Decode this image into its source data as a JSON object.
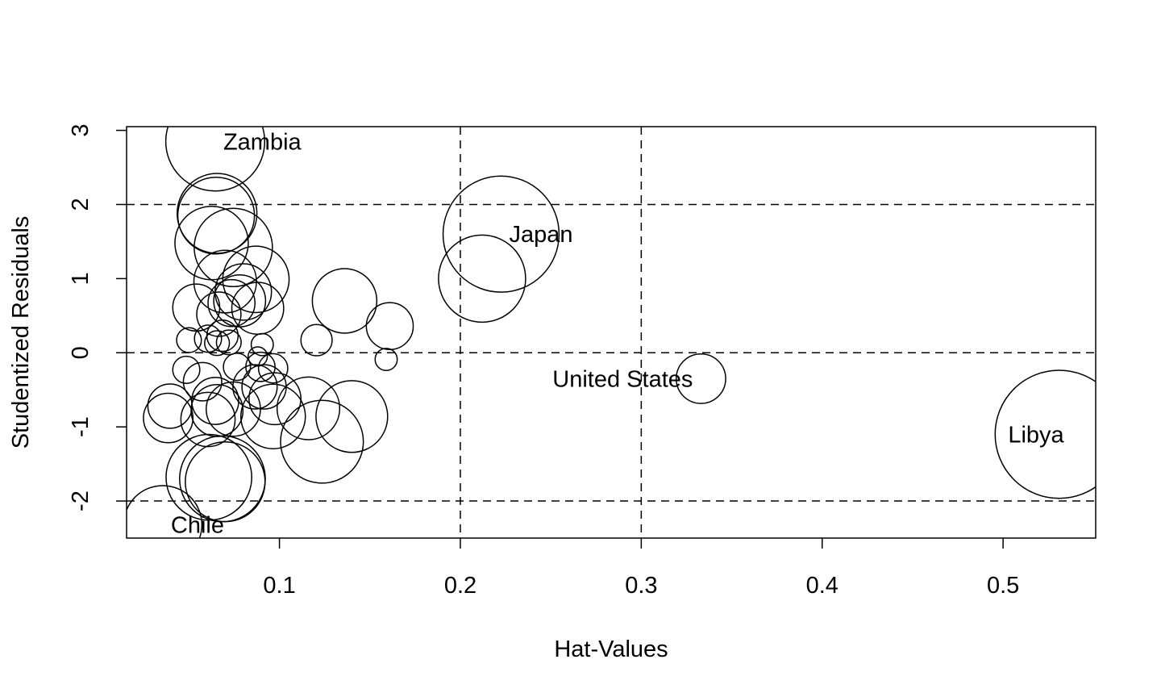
{
  "chart_data": {
    "type": "scatter",
    "title": "",
    "xlabel": "Hat-Values",
    "ylabel": "Studentized Residuals",
    "xlim": [
      0.0155,
      0.5512
    ],
    "ylim": [
      -2.5,
      3.05
    ],
    "x_ticks": [
      0.1,
      0.2,
      0.3,
      0.4,
      0.5
    ],
    "x_tick_labels": [
      "0.1",
      "0.2",
      "0.3",
      "0.4",
      "0.5"
    ],
    "y_ticks": [
      -2,
      -1,
      0,
      1,
      2,
      3
    ],
    "y_tick_labels": [
      "-2",
      "-1",
      "0",
      "1",
      "2",
      "3"
    ],
    "reference_lines": {
      "horizontal": [
        -2,
        0,
        2
      ],
      "vertical": [
        0.2,
        0.3
      ]
    },
    "grid": false,
    "legend": "none",
    "bubble_size_variable": "Cook's distance (relative)",
    "points": [
      {
        "x": 0.0645,
        "y": 2.85,
        "size": 0.4,
        "label": "Zambia"
      },
      {
        "x": 0.0655,
        "y": 1.88,
        "size": 0.26
      },
      {
        "x": 0.065,
        "y": 1.85,
        "size": 0.24
      },
      {
        "x": 0.0625,
        "y": 1.48,
        "size": 0.22
      },
      {
        "x": 0.0745,
        "y": 1.42,
        "size": 0.25
      },
      {
        "x": 0.087,
        "y": 0.99,
        "size": 0.18
      },
      {
        "x": 0.07,
        "y": 0.96,
        "size": 0.16
      },
      {
        "x": 0.08,
        "y": 0.82,
        "size": 0.13
      },
      {
        "x": 0.078,
        "y": 0.7,
        "size": 0.11
      },
      {
        "x": 0.0735,
        "y": 0.67,
        "size": 0.09
      },
      {
        "x": 0.088,
        "y": 0.6,
        "size": 0.11
      },
      {
        "x": 0.054,
        "y": 0.61,
        "size": 0.09
      },
      {
        "x": 0.0665,
        "y": 0.52,
        "size": 0.08
      },
      {
        "x": 0.136,
        "y": 0.7,
        "size": 0.17
      },
      {
        "x": 0.161,
        "y": 0.36,
        "size": 0.09
      },
      {
        "x": 0.1205,
        "y": 0.17,
        "size": 0.04
      },
      {
        "x": 0.05,
        "y": 0.17,
        "size": 0.025
      },
      {
        "x": 0.0605,
        "y": 0.19,
        "size": 0.03
      },
      {
        "x": 0.0685,
        "y": 0.23,
        "size": 0.04
      },
      {
        "x": 0.0655,
        "y": 0.13,
        "size": 0.025
      },
      {
        "x": 0.072,
        "y": 0.14,
        "size": 0.025
      },
      {
        "x": 0.0905,
        "y": 0.11,
        "size": 0.02
      },
      {
        "x": 0.088,
        "y": -0.05,
        "size": 0.015
      },
      {
        "x": 0.159,
        "y": -0.09,
        "size": 0.02
      },
      {
        "x": 0.0485,
        "y": -0.23,
        "size": 0.03
      },
      {
        "x": 0.0765,
        "y": -0.19,
        "size": 0.03
      },
      {
        "x": 0.0895,
        "y": -0.19,
        "size": 0.035
      },
      {
        "x": 0.0965,
        "y": -0.21,
        "size": 0.035
      },
      {
        "x": 0.0575,
        "y": -0.39,
        "size": 0.06
      },
      {
        "x": 0.0865,
        "y": -0.46,
        "size": 0.08
      },
      {
        "x": 0.0915,
        "y": -0.46,
        "size": 0.08
      },
      {
        "x": 0.0975,
        "y": -0.62,
        "size": 0.11
      },
      {
        "x": 0.0645,
        "y": -0.65,
        "size": 0.09
      },
      {
        "x": 0.0655,
        "y": -0.78,
        "size": 0.11
      },
      {
        "x": 0.0745,
        "y": -0.76,
        "size": 0.12
      },
      {
        "x": 0.0605,
        "y": -0.9,
        "size": 0.12
      },
      {
        "x": 0.0395,
        "y": -0.72,
        "size": 0.08
      },
      {
        "x": 0.0385,
        "y": -0.88,
        "size": 0.1
      },
      {
        "x": 0.0965,
        "y": -0.86,
        "size": 0.17
      },
      {
        "x": 0.116,
        "y": -0.75,
        "size": 0.16
      },
      {
        "x": 0.14,
        "y": -0.86,
        "size": 0.21
      },
      {
        "x": 0.1235,
        "y": -1.2,
        "size": 0.28
      },
      {
        "x": 0.061,
        "y": -1.68,
        "size": 0.3
      },
      {
        "x": 0.0685,
        "y": -1.7,
        "size": 0.3
      },
      {
        "x": 0.07,
        "y": -1.74,
        "size": 0.26
      },
      {
        "x": 0.0355,
        "y": -2.32,
        "size": 0.25,
        "label": "Chile"
      },
      {
        "x": 0.2225,
        "y": 1.6,
        "size": 0.55,
        "label": "Japan"
      },
      {
        "x": 0.212,
        "y": 1.0,
        "size": 0.31
      },
      {
        "x": 0.333,
        "y": -0.35,
        "size": 0.1,
        "label": "United States"
      },
      {
        "x": 0.531,
        "y": -1.1,
        "size": 0.67,
        "label": "Libya"
      }
    ]
  }
}
